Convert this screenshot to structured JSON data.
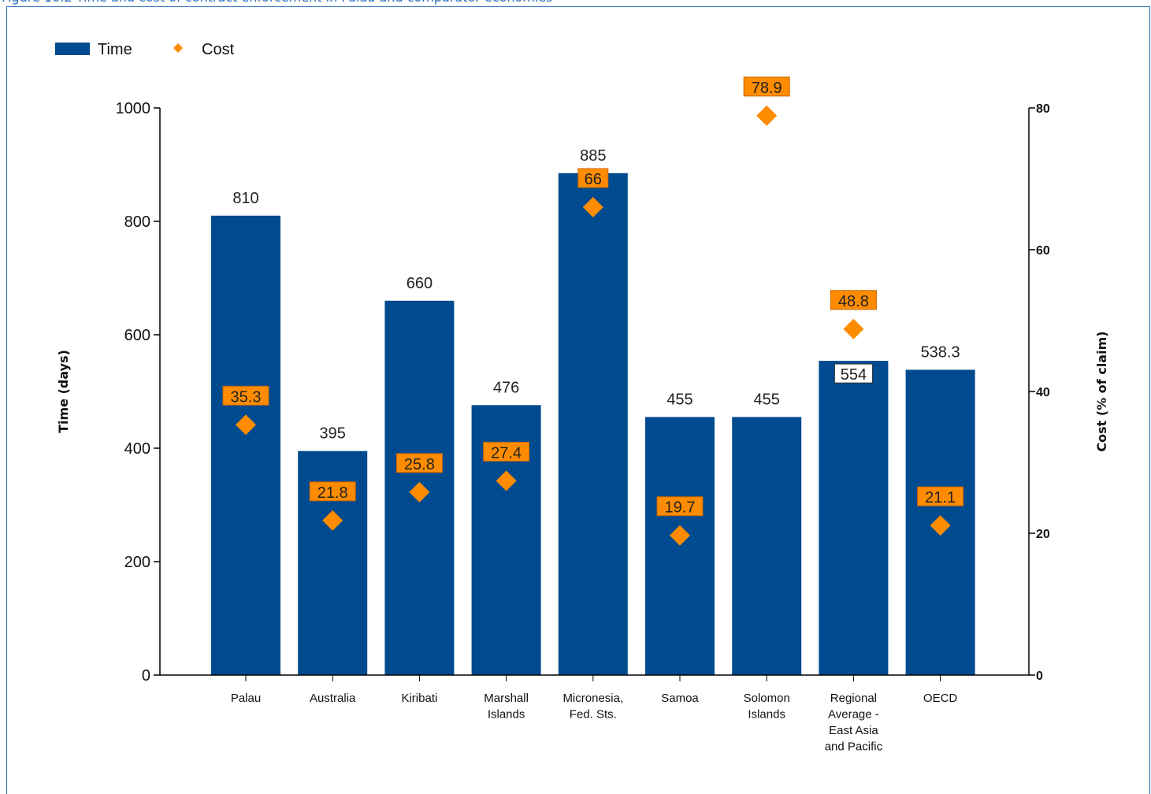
{
  "caption": "Figure 10.2 Time and cost of contract enforcement in Palau and comparator economies",
  "colors": {
    "bar": "#004a8f",
    "cost": "#ff8c00",
    "caption": "#2a6ebb"
  },
  "chart_data": {
    "type": "bar",
    "categories": [
      [
        "Palau"
      ],
      [
        "Australia"
      ],
      [
        "Kiribati"
      ],
      [
        "Marshall",
        "Islands"
      ],
      [
        "Micronesia,",
        "Fed. Sts."
      ],
      [
        "Samoa"
      ],
      [
        "Solomon",
        "Islands"
      ],
      [
        "Regional",
        "Average -",
        "East Asia",
        "and Pacific"
      ],
      [
        "OECD"
      ]
    ],
    "series": [
      {
        "name": "Time",
        "axis": "left",
        "values": [
          810,
          395,
          660,
          476,
          885,
          455,
          455,
          554,
          538.3
        ],
        "labels": [
          "810",
          "395",
          "660",
          "476",
          "885",
          "455",
          "455",
          "554",
          "538.3"
        ]
      },
      {
        "name": "Cost",
        "axis": "right",
        "values": [
          35.3,
          21.8,
          25.8,
          27.4,
          66,
          19.7,
          78.9,
          48.8,
          21.1
        ],
        "labels": [
          "35.3",
          "21.8",
          "25.8",
          "27.4",
          "66",
          "19.7",
          "78.9",
          "48.8",
          "21.1"
        ]
      }
    ],
    "y_left": {
      "label": "Time (days)",
      "min": 0,
      "max": 1000,
      "ticks": [
        0,
        200,
        400,
        600,
        800,
        1000
      ]
    },
    "y_right": {
      "label": "Cost (% of claim)",
      "min": 0,
      "max": 80,
      "ticks": [
        0,
        20,
        40,
        60,
        80
      ]
    },
    "legend": {
      "position": "top-left",
      "items": [
        {
          "label": "Time",
          "marker": "bar"
        },
        {
          "label": "Cost",
          "marker": "diamond"
        }
      ]
    }
  }
}
